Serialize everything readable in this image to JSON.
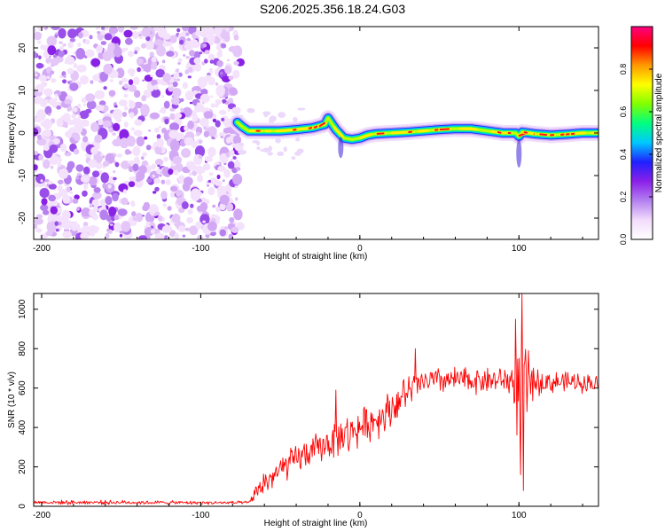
{
  "figure": {
    "title": "S206.2025.356.18.24.G03"
  },
  "chart_data": [
    {
      "type": "heatmap",
      "title": "",
      "xlabel": "Height of straight line (km)",
      "ylabel": "Frequency (Hz)",
      "xlim": [
        -205,
        150
      ],
      "ylim": [
        -25,
        25
      ],
      "xticks": [
        -200,
        -100,
        0,
        100
      ],
      "yticks": [
        -20,
        -10,
        0,
        10,
        20
      ],
      "colorbar": {
        "label": "Normalized spectral amplitude",
        "range": [
          0,
          1
        ],
        "ticks": [
          0.0,
          0.2,
          0.4,
          0.6,
          0.8
        ],
        "tick_labels": [
          "0.0",
          "0.2",
          "0.4",
          "0.6",
          "0.8"
        ],
        "colors": [
          "#ffffff",
          "#f2dcfb",
          "#b480f0",
          "#8a20e8",
          "#2020ff",
          "#00c8ff",
          "#00ff80",
          "#80ff00",
          "#ffff00",
          "#ff9900",
          "#ff0000",
          "#ff0080"
        ]
      },
      "noise_region_x": [
        -205,
        -75
      ],
      "ridge": {
        "x": [
          -77,
          -74,
          -70,
          -60,
          -50,
          -40,
          -30,
          -22,
          -20,
          -15,
          -10,
          -5,
          0,
          5,
          10,
          20,
          30,
          40,
          50,
          60,
          70,
          80,
          90,
          95,
          98,
          100,
          102,
          110,
          120,
          130,
          140,
          150
        ],
        "freq": [
          2.5,
          1.5,
          0.5,
          0.5,
          0.5,
          0.8,
          1.2,
          2.0,
          3.5,
          0.8,
          -1.2,
          -1.5,
          -1.2,
          -0.5,
          -0.2,
          0.0,
          0.2,
          0.5,
          0.8,
          1.0,
          1.0,
          0.5,
          0.0,
          0.0,
          0.0,
          -0.8,
          0.2,
          -0.2,
          -0.5,
          -0.3,
          0.0,
          0.0
        ]
      }
    },
    {
      "type": "line",
      "title": "",
      "xlabel": "Height of straight line (km)",
      "ylabel": "SNR (10 * v/v)",
      "xlim": [
        -205,
        150
      ],
      "ylim": [
        0,
        1080
      ],
      "xticks": [
        -200,
        -100,
        0,
        100
      ],
      "yticks": [
        0,
        200,
        400,
        600,
        800,
        1000
      ],
      "series": [
        {
          "name": "SNR",
          "color": "#ff0000",
          "envelope_x": [
            -205,
            -150,
            -100,
            -70,
            -66,
            -60,
            -50,
            -40,
            -30,
            -20,
            -10,
            0,
            10,
            20,
            30,
            40,
            50,
            60,
            70,
            80,
            90,
            95,
            100,
            105,
            110,
            120,
            130,
            140,
            150
          ],
          "envelope_mean": [
            20,
            20,
            18,
            18,
            60,
            120,
            180,
            240,
            280,
            320,
            360,
            400,
            440,
            500,
            580,
            630,
            640,
            640,
            640,
            640,
            640,
            640,
            600,
            640,
            630,
            630,
            630,
            630,
            620
          ],
          "envelope_spread": [
            12,
            12,
            10,
            10,
            40,
            80,
            90,
            90,
            90,
            100,
            110,
            110,
            110,
            120,
            100,
            80,
            80,
            80,
            80,
            80,
            80,
            100,
            350,
            200,
            80,
            70,
            60,
            60,
            60
          ],
          "peaks": [
            {
              "x": -15,
              "y": 590
            },
            {
              "x": -7,
              "y": 280
            },
            {
              "x": 35,
              "y": 800
            },
            {
              "x": 98,
              "y": 950
            },
            {
              "x": 101,
              "y": 160
            },
            {
              "x": 102,
              "y": 1080
            },
            {
              "x": 103,
              "y": 80
            },
            {
              "x": 105,
              "y": 480
            }
          ]
        }
      ]
    }
  ]
}
